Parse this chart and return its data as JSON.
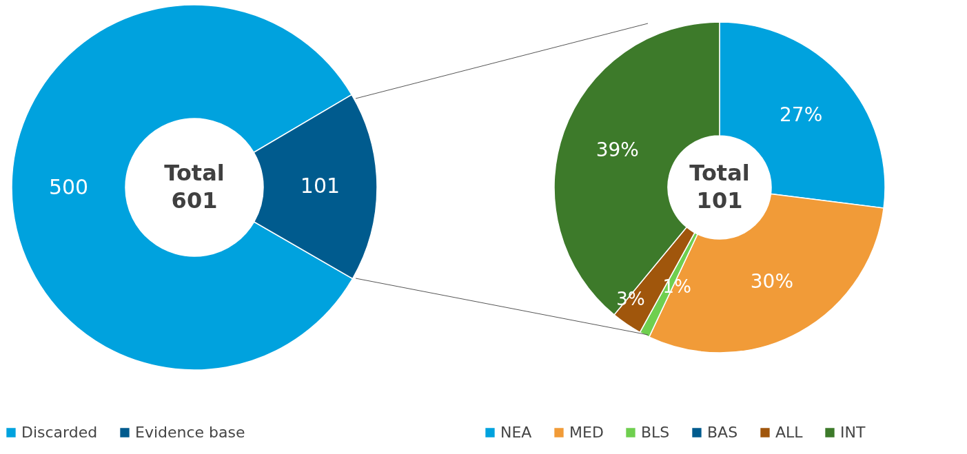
{
  "chart_data": [
    {
      "type": "donut",
      "categories": [
        "Discarded",
        "Evidence base"
      ],
      "values": [
        500,
        101
      ],
      "colors": [
        "#00a2de",
        "#005b8e"
      ],
      "data_labels": true,
      "annotations": [
        "Total",
        "601"
      ],
      "legend": "bottom"
    },
    {
      "type": "donut",
      "categories": [
        "NEA",
        "MED",
        "BLS",
        "BAS",
        "ALL",
        "INT"
      ],
      "values": [
        27,
        30,
        1,
        0,
        3,
        39
      ],
      "colors": [
        "#00a2de",
        "#f19b38",
        "#6fcf4f",
        "#005b8e",
        "#a0560c",
        "#3d7a2a"
      ],
      "value_labels": [
        "27%",
        "30%",
        "1%",
        null,
        "3%",
        "39%"
      ],
      "annotations": [
        "Total",
        "101"
      ],
      "legend": "bottom"
    }
  ]
}
